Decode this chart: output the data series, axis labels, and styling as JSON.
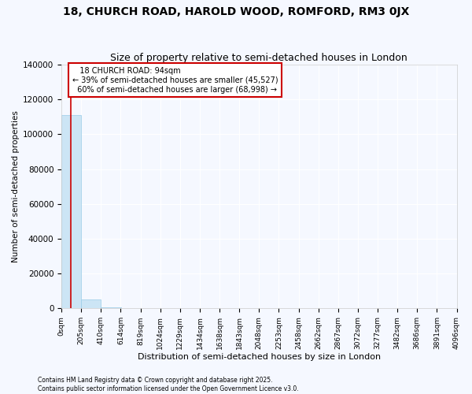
{
  "title": "18, CHURCH ROAD, HAROLD WOOD, ROMFORD, RM3 0JX",
  "subtitle": "Size of property relative to semi-detached houses in London",
  "xlabel": "Distribution of semi-detached houses by size in London",
  "ylabel": "Number of semi-detached properties",
  "footer": "Contains HM Land Registry data © Crown copyright and database right 2025.\nContains public sector information licensed under the Open Government Licence v3.0.",
  "property_size": 94,
  "property_label": "18 CHURCH ROAD: 94sqm",
  "pct_smaller": 39,
  "n_smaller": 45527,
  "pct_larger": 60,
  "n_larger": 68998,
  "bar_color": "#cce5f5",
  "bar_edgecolor": "#99cce8",
  "line_color": "#cc0000",
  "annotation_box_color": "#cc0000",
  "background_color": "#f5f8ff",
  "grid_color": "#ffffff",
  "bin_edges": [
    0,
    205,
    410,
    614,
    819,
    1024,
    1229,
    1434,
    1638,
    1843,
    2048,
    2253,
    2458,
    2662,
    2867,
    3072,
    3277,
    3482,
    3686,
    3891,
    4096
  ],
  "bin_labels": [
    "0sqm",
    "205sqm",
    "410sqm",
    "614sqm",
    "819sqm",
    "1024sqm",
    "1229sqm",
    "1434sqm",
    "1638sqm",
    "1843sqm",
    "2048sqm",
    "2253sqm",
    "2458sqm",
    "2662sqm",
    "2867sqm",
    "3072sqm",
    "3277sqm",
    "3482sqm",
    "3686sqm",
    "3891sqm",
    "4096sqm"
  ],
  "bar_heights": [
    111000,
    5000,
    700,
    200,
    80,
    40,
    20,
    12,
    8,
    5,
    4,
    3,
    2,
    2,
    1,
    1,
    1,
    1,
    1,
    1
  ],
  "ylim": [
    0,
    140000
  ],
  "yticks": [
    0,
    20000,
    40000,
    60000,
    80000,
    100000,
    120000,
    140000
  ]
}
